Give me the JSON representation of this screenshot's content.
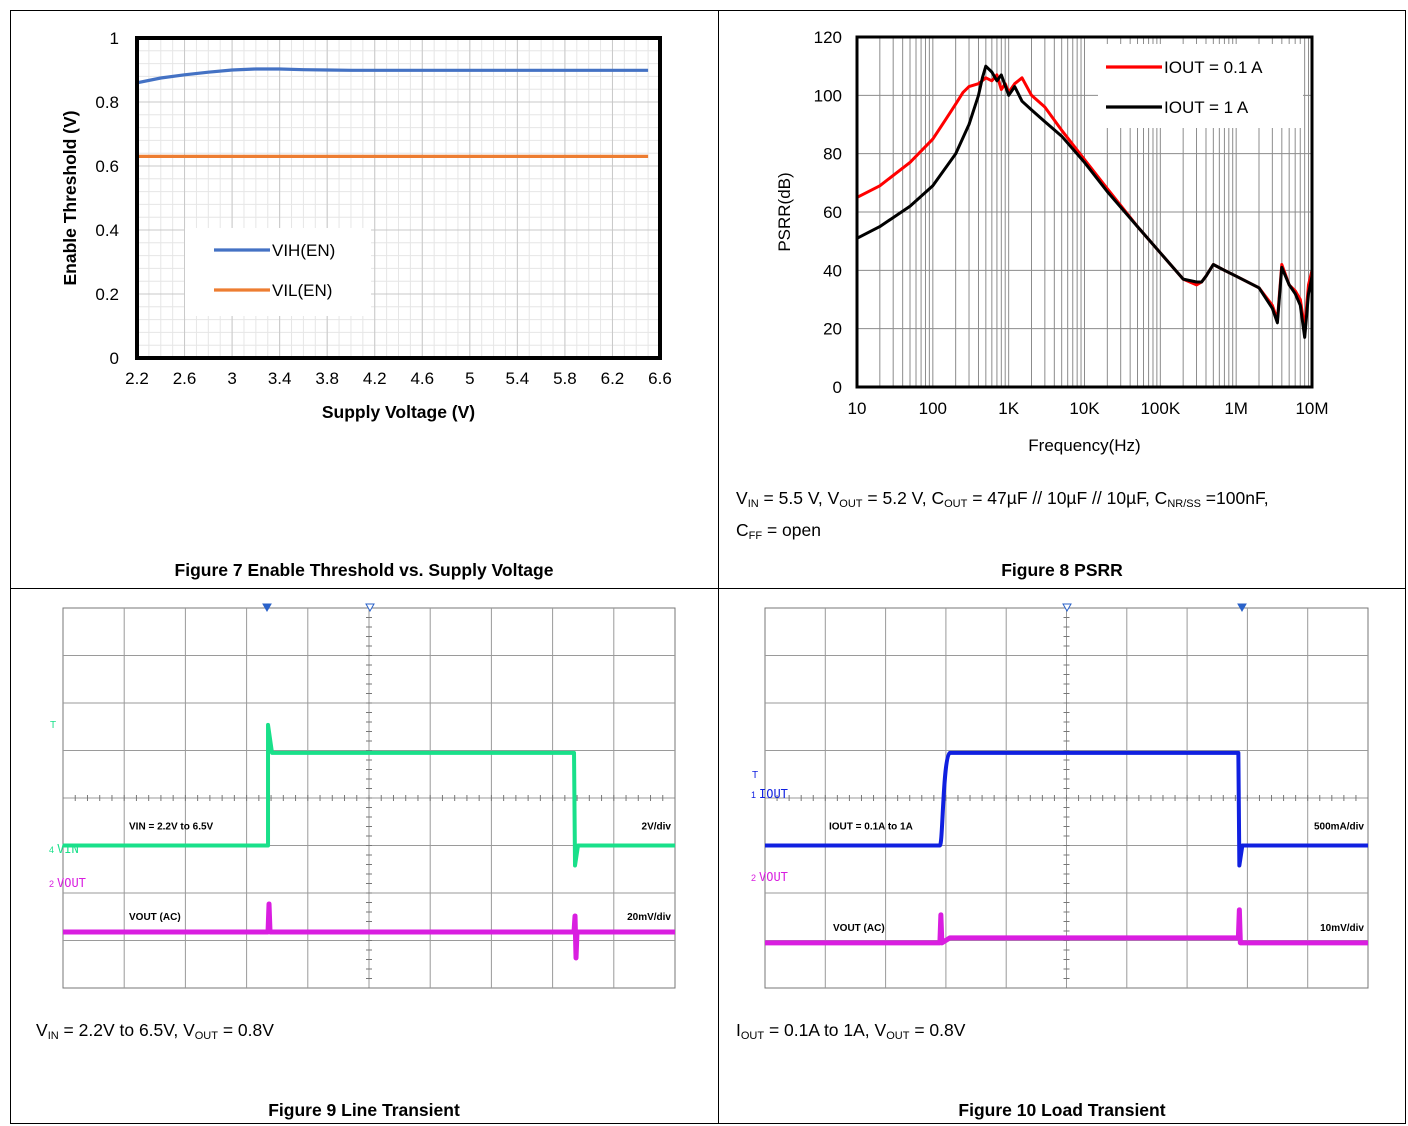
{
  "panels": {
    "fig7": {
      "caption": "Figure 7 Enable Threshold vs. Supply Voltage"
    },
    "fig8": {
      "caption": "Figure 8 PSRR",
      "conditions": {
        "line1": {
          "p1": "V",
          "s1": "IN",
          "p2": " = 5.5 V, V",
          "s2": "OUT",
          "p3": " = 5.2 V, C",
          "s3": "OUT",
          "p4": " = 47µF // 10µF // 10µF, C",
          "s4": "NR/SS",
          "p5": " =100nF,"
        },
        "line2": {
          "p1": "C",
          "s1": "FF",
          "p2": " = open"
        }
      }
    },
    "fig9": {
      "caption": "Figure 9 Line Transient",
      "conditions": {
        "p1": "V",
        "s1": "IN",
        "p2": " = 2.2V to 6.5V, V",
        "s2": "OUT",
        "p3": " = 0.8V"
      }
    },
    "fig10": {
      "caption": "Figure 10 Load Transient",
      "conditions": {
        "p1": "I",
        "s1": "OUT",
        "p2": " = 0.1A to 1A, V",
        "s2": "OUT",
        "p3": " = 0.8V"
      }
    }
  },
  "chart_data": [
    {
      "id": "fig7",
      "type": "line",
      "xlabel": "Supply Voltage (V)",
      "ylabel": "Enable Threshold (V)",
      "xlim": [
        2.2,
        6.6
      ],
      "ylim": [
        0,
        1
      ],
      "x_ticks": [
        "2.2",
        "2.6",
        "3",
        "3.4",
        "3.8",
        "4.2",
        "4.6",
        "5",
        "5.4",
        "5.8",
        "6.2",
        "6.6"
      ],
      "y_ticks": [
        "0",
        "0.2",
        "0.4",
        "0.6",
        "0.8",
        "1"
      ],
      "grid": true,
      "legend": "center-left",
      "series": [
        {
          "name": "VIH(EN)",
          "color": "#4472C4",
          "x": [
            2.2,
            2.4,
            2.6,
            2.8,
            3.0,
            3.2,
            3.4,
            3.6,
            3.8,
            4.0,
            4.5,
            5.0,
            5.5,
            6.0,
            6.5
          ],
          "y": [
            0.86,
            0.875,
            0.885,
            0.893,
            0.9,
            0.903,
            0.903,
            0.901,
            0.9,
            0.899,
            0.899,
            0.899,
            0.899,
            0.899,
            0.899
          ]
        },
        {
          "name": "VIL(EN)",
          "color": "#ED7D31",
          "x": [
            2.2,
            3.0,
            4.0,
            5.0,
            6.0,
            6.5
          ],
          "y": [
            0.63,
            0.63,
            0.63,
            0.63,
            0.63,
            0.63
          ]
        }
      ]
    },
    {
      "id": "fig8",
      "type": "line",
      "xlabel": "Frequency(Hz)",
      "ylabel": "PSRR(dB)",
      "x_scale": "log",
      "xlim": [
        10,
        10000000
      ],
      "ylim": [
        0,
        120
      ],
      "x_ticks": [
        "10",
        "100",
        "1K",
        "10K",
        "100K",
        "1M",
        "10M"
      ],
      "y_ticks": [
        "0",
        "20",
        "40",
        "60",
        "80",
        "100",
        "120"
      ],
      "grid": true,
      "legend": "top-right",
      "series": [
        {
          "name": "IOUT = 0.1 A",
          "color": "#FF0000",
          "x": [
            10,
            20,
            50,
            100,
            150,
            200,
            250,
            300,
            400,
            500,
            600,
            700,
            800,
            900,
            1000,
            1200,
            1500,
            2000,
            3000,
            5000,
            10000,
            20000,
            50000,
            100000,
            200000,
            300000,
            350000,
            400000,
            500000,
            700000,
            1000000,
            2000000,
            3000000,
            3500000,
            4000000,
            5000000,
            6000000,
            7000000,
            8000000,
            9000000,
            10000000
          ],
          "y": [
            65,
            69,
            77,
            85,
            92,
            97,
            101,
            103,
            104,
            106,
            105,
            107,
            102,
            104,
            101,
            104,
            106,
            100,
            96,
            88,
            78,
            68,
            55,
            46,
            37,
            35,
            36,
            38,
            42,
            40,
            38,
            34,
            28,
            23,
            42,
            35,
            33,
            30,
            20,
            35,
            40
          ]
        },
        {
          "name": "IOUT = 1 A",
          "color": "#000000",
          "x": [
            10,
            20,
            50,
            100,
            200,
            300,
            400,
            450,
            500,
            600,
            700,
            800,
            1000,
            1200,
            1500,
            2000,
            3000,
            5000,
            10000,
            20000,
            50000,
            100000,
            200000,
            300000,
            350000,
            400000,
            500000,
            700000,
            1000000,
            2000000,
            3000000,
            3500000,
            4000000,
            5000000,
            6000000,
            7000000,
            8000000,
            9000000,
            10000000
          ],
          "y": [
            51,
            55,
            62,
            69,
            80,
            90,
            100,
            106,
            110,
            108,
            105,
            107,
            100,
            103,
            98,
            95,
            91,
            86,
            77,
            67,
            55,
            46,
            37,
            36,
            36,
            38,
            42,
            40,
            38,
            34,
            27,
            22,
            41,
            35,
            32,
            28,
            17,
            32,
            38
          ]
        }
      ]
    },
    {
      "id": "fig9",
      "type": "line",
      "title": "",
      "grid": true,
      "channels": [
        {
          "name": "VIN",
          "marker": "4",
          "color": "#19E08A",
          "label": "VIN = 2.2V to 6.5V",
          "scale": "2V/div",
          "step_up_div": 3.35,
          "step_down_div": 8.35,
          "low_div": 5.0,
          "high_div": 3.05
        },
        {
          "name": "VOUT",
          "marker": "2",
          "color": "#D91EE0",
          "label": "VOUT (AC)",
          "scale": "20mV/div",
          "baseline_div": 6.82
        }
      ],
      "trigger_marker": "T"
    },
    {
      "id": "fig10",
      "type": "line",
      "grid": true,
      "channels": [
        {
          "name": "IOUT",
          "marker": "1",
          "color": "#1020E0",
          "label": "IOUT = 0.1A to 1A",
          "scale": "500mA/div",
          "step_up_div": 2.9,
          "step_down_div": 7.85,
          "low_div": 5.0,
          "high_div": 3.05
        },
        {
          "name": "VOUT",
          "marker": "2",
          "color": "#D91EE0",
          "label": "VOUT (AC)",
          "scale": "10mV/div",
          "baseline_div": 7.05
        }
      ],
      "trigger_marker": "T"
    }
  ]
}
